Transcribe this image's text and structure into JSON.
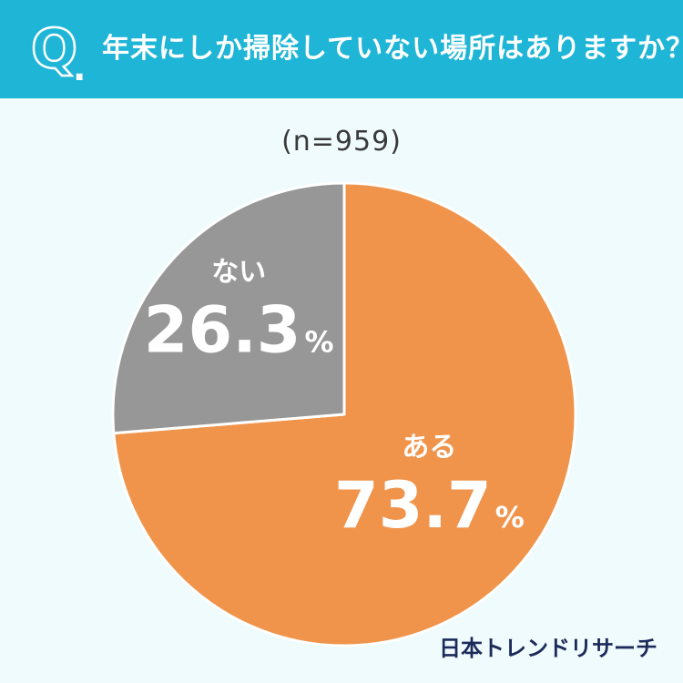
{
  "header": {
    "q_letter": "Q",
    "q_dot": ".",
    "question": "年末にしか掃除していない場所はありますか？",
    "background": "#1fb5d6"
  },
  "sample_size": "(n=959)",
  "brand": "日本トレンドリサーチ",
  "chart_data": {
    "type": "pie",
    "title": "",
    "categories": [
      "ある",
      "ない"
    ],
    "values": [
      73.7,
      26.3
    ],
    "value_labels": [
      "73.7",
      "26.3"
    ],
    "unit": "%",
    "colors": [
      "#f0944b",
      "#979797"
    ],
    "start": "12 o'clock, clockwise",
    "legend": "none"
  }
}
